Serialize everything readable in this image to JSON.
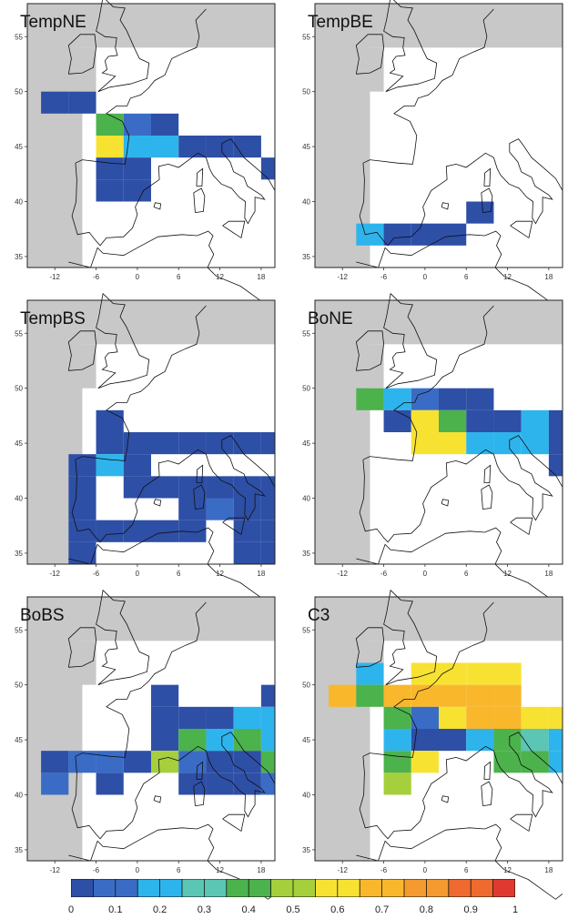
{
  "lon_ticks": [
    "-12",
    "-6",
    "0",
    "6",
    "12",
    "18"
  ],
  "lat_ticks": [
    "55",
    "50",
    "45",
    "40",
    "35"
  ],
  "colors": {
    "ocean": "#ffffff",
    "no_data": "#c8c8c8",
    "coast": "#111111",
    "scale": [
      "#2e4fa6",
      "#3a6cc6",
      "#2eb4ec",
      "#5bc6b4",
      "#4cb24c",
      "#a6cf3c",
      "#f7e232",
      "#f9b72c",
      "#f59a2e",
      "#ee6a2e",
      "#e03a30"
    ]
  },
  "colorbar": {
    "labels": [
      "0",
      "0.1",
      "0.2",
      "0.3",
      "0.4",
      "0.5",
      "0.6",
      "0.7",
      "0.8",
      "0.9",
      "1"
    ]
  },
  "panels": [
    {
      "title": "TempNE",
      "cells": [
        [
          -14,
          48,
          0.05
        ],
        [
          -10,
          48,
          0.05
        ],
        [
          -6,
          46,
          0.4
        ],
        [
          -2,
          46,
          0.15
        ],
        [
          2,
          46,
          0.05
        ],
        [
          -6,
          44,
          0.65
        ],
        [
          -2,
          44,
          0.2
        ],
        [
          2,
          44,
          0.2
        ],
        [
          6,
          44,
          0.05
        ],
        [
          10,
          44,
          0.05
        ],
        [
          14,
          44,
          0.05
        ],
        [
          -6,
          42,
          0.05
        ],
        [
          -2,
          42,
          0.05
        ],
        [
          18,
          42,
          0.05
        ],
        [
          -6,
          40,
          0.05
        ],
        [
          -2,
          40,
          0.05
        ]
      ]
    },
    {
      "title": "TempBE",
      "cells": [
        [
          -10,
          36,
          0.25
        ],
        [
          -6,
          36,
          0.05
        ],
        [
          -2,
          36,
          0.05
        ],
        [
          2,
          36,
          0.05
        ],
        [
          6,
          38,
          0.05
        ]
      ]
    },
    {
      "title": "TempBS",
      "cells": [
        [
          -6,
          46,
          0.05
        ],
        [
          -6,
          44,
          0.05
        ],
        [
          -2,
          44,
          0.05
        ],
        [
          2,
          44,
          0.05
        ],
        [
          6,
          44,
          0.05
        ],
        [
          10,
          44,
          0.05
        ],
        [
          14,
          44,
          0.05
        ],
        [
          18,
          44,
          0.05
        ],
        [
          -10,
          42,
          0.05
        ],
        [
          -6,
          42,
          0.2
        ],
        [
          -2,
          42,
          0.05
        ],
        [
          -10,
          40,
          0.05
        ],
        [
          -2,
          40,
          0.05
        ],
        [
          2,
          40,
          0.05
        ],
        [
          6,
          40,
          0.05
        ],
        [
          10,
          40,
          0.05
        ],
        [
          14,
          40,
          0.05
        ],
        [
          18,
          40,
          0.05
        ],
        [
          -10,
          38,
          0.05
        ],
        [
          6,
          38,
          0.05
        ],
        [
          10,
          38,
          0.1
        ],
        [
          14,
          38,
          0.05
        ],
        [
          18,
          38,
          0.05
        ],
        [
          -10,
          36,
          0.05
        ],
        [
          -6,
          36,
          0.05
        ],
        [
          -2,
          36,
          0.05
        ],
        [
          2,
          36,
          0.05
        ],
        [
          6,
          36,
          0.05
        ],
        [
          14,
          36,
          0.05
        ],
        [
          18,
          36,
          0.05
        ],
        [
          -10,
          34,
          0.05
        ],
        [
          14,
          34,
          0.05
        ],
        [
          18,
          34,
          0.05
        ]
      ]
    },
    {
      "title": "BoNE",
      "cells": [
        [
          -10,
          48,
          0.4
        ],
        [
          -6,
          48,
          0.2
        ],
        [
          -2,
          48,
          0.15
        ],
        [
          2,
          48,
          0.05
        ],
        [
          6,
          48,
          0.05
        ],
        [
          -6,
          46,
          0.05
        ],
        [
          -2,
          46,
          0.65
        ],
        [
          2,
          46,
          0.4
        ],
        [
          6,
          46,
          0.05
        ],
        [
          10,
          46,
          0.05
        ],
        [
          14,
          46,
          0.2
        ],
        [
          18,
          46,
          0.05
        ],
        [
          -2,
          44,
          0.65
        ],
        [
          2,
          44,
          0.65
        ],
        [
          6,
          44,
          0.2
        ],
        [
          10,
          44,
          0.25
        ],
        [
          14,
          44,
          0.2
        ],
        [
          18,
          44,
          0.05
        ],
        [
          18,
          42,
          0.05
        ]
      ]
    },
    {
      "title": "BoBS",
      "cells": [
        [
          2,
          48,
          0.05
        ],
        [
          18,
          48,
          0.05
        ],
        [
          2,
          46,
          0.05
        ],
        [
          6,
          46,
          0.05
        ],
        [
          10,
          46,
          0.05
        ],
        [
          14,
          46,
          0.25
        ],
        [
          18,
          46,
          0.25
        ],
        [
          2,
          44,
          0.05
        ],
        [
          6,
          44,
          0.4
        ],
        [
          10,
          44,
          0.2
        ],
        [
          14,
          44,
          0.4
        ],
        [
          18,
          44,
          0.25
        ],
        [
          -14,
          42,
          0.05
        ],
        [
          -10,
          42,
          0.1
        ],
        [
          -6,
          42,
          0.1
        ],
        [
          -2,
          42,
          0.05
        ],
        [
          2,
          42,
          0.55
        ],
        [
          6,
          42,
          0.15
        ],
        [
          10,
          42,
          0.05
        ],
        [
          14,
          42,
          0.05
        ],
        [
          18,
          42,
          0.4
        ],
        [
          -14,
          40,
          0.1
        ],
        [
          -6,
          40,
          0.05
        ],
        [
          6,
          40,
          0.05
        ],
        [
          10,
          40,
          0.05
        ],
        [
          14,
          40,
          0.05
        ],
        [
          18,
          40,
          0.1
        ]
      ]
    },
    {
      "title": "C3",
      "cells": [
        [
          -10,
          50,
          0.25
        ],
        [
          -2,
          50,
          0.6
        ],
        [
          2,
          50,
          0.65
        ],
        [
          6,
          50,
          0.65
        ],
        [
          10,
          50,
          0.65
        ],
        [
          -14,
          48,
          0.7
        ],
        [
          -10,
          48,
          0.4
        ],
        [
          -6,
          48,
          0.7
        ],
        [
          -2,
          48,
          0.7
        ],
        [
          2,
          48,
          0.7
        ],
        [
          6,
          48,
          0.75
        ],
        [
          10,
          48,
          0.75
        ],
        [
          -6,
          46,
          0.4
        ],
        [
          -2,
          46,
          0.15
        ],
        [
          2,
          46,
          0.6
        ],
        [
          6,
          46,
          0.7
        ],
        [
          10,
          46,
          0.75
        ],
        [
          14,
          46,
          0.6
        ],
        [
          18,
          46,
          0.6
        ],
        [
          -6,
          44,
          0.25
        ],
        [
          -2,
          44,
          0.05
        ],
        [
          2,
          44,
          0.05
        ],
        [
          6,
          44,
          0.2
        ],
        [
          10,
          44,
          0.4
        ],
        [
          14,
          44,
          0.3
        ],
        [
          18,
          44,
          0.25
        ],
        [
          -6,
          42,
          0.4
        ],
        [
          -2,
          42,
          0.6
        ],
        [
          10,
          42,
          0.4
        ],
        [
          14,
          42,
          0.4
        ],
        [
          18,
          42,
          0.2
        ],
        [
          -6,
          40,
          0.55
        ]
      ]
    }
  ]
}
